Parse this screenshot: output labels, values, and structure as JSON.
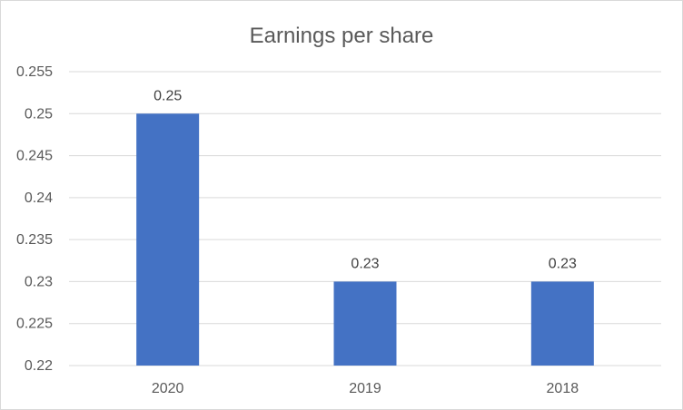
{
  "chart_data": {
    "type": "bar",
    "title": "Earnings per share",
    "categories": [
      "2020",
      "2019",
      "2018"
    ],
    "series": [
      {
        "values": [
          0.25,
          0.23,
          0.23
        ]
      }
    ],
    "data_labels": [
      "0.25",
      "0.23",
      "0.23"
    ],
    "y_ticks": [
      "0.22",
      "0.225",
      "0.23",
      "0.235",
      "0.24",
      "0.245",
      "0.25",
      "0.255"
    ],
    "ylim": [
      0.22,
      0.255
    ],
    "xlabel": "",
    "ylabel": "",
    "grid": true,
    "legend": "none",
    "colors": {
      "bar": "#4472c4"
    }
  }
}
